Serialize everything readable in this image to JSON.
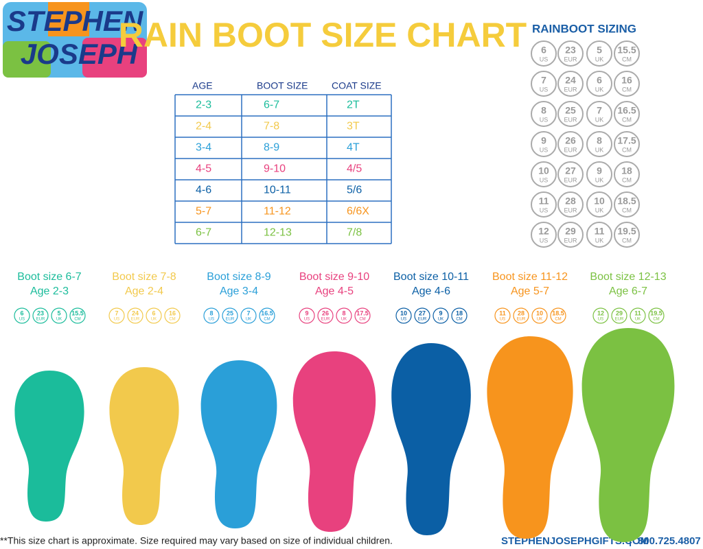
{
  "logo": {
    "line1": "STEPHEN",
    "line2": "JOSEPH"
  },
  "title": "RAIN BOOT SIZE CHART",
  "table": {
    "headers": [
      "AGE",
      "BOOT SIZE",
      "COAT SIZE"
    ],
    "rows": [
      [
        "2-3",
        "6-7",
        "2T"
      ],
      [
        "2-4",
        "7-8",
        "3T"
      ],
      [
        "3-4",
        "8-9",
        "4T"
      ],
      [
        "4-5",
        "9-10",
        "4/5"
      ],
      [
        "4-6",
        "10-11",
        "5/6"
      ],
      [
        "5-7",
        "11-12",
        "6/6X"
      ],
      [
        "6-7",
        "12-13",
        "7/8"
      ]
    ]
  },
  "units": [
    "US",
    "EUR",
    "UK",
    "CM"
  ],
  "sizing": {
    "title": "RAINBOOT SIZING",
    "rows": [
      [
        "6",
        "23",
        "5",
        "15.5"
      ],
      [
        "7",
        "24",
        "6",
        "16"
      ],
      [
        "8",
        "25",
        "7",
        "16.5"
      ],
      [
        "9",
        "26",
        "8",
        "17.5"
      ],
      [
        "10",
        "27",
        "9",
        "18"
      ],
      [
        "11",
        "28",
        "10",
        "18.5"
      ],
      [
        "12",
        "29",
        "11",
        "19.5"
      ]
    ]
  },
  "groups": [
    {
      "label": "Boot size 6-7",
      "age": "Age 2-3",
      "color": "#1bbc9b"
    },
    {
      "label": "Boot size 7-8",
      "age": "Age 2-4",
      "color": "#f2c94c"
    },
    {
      "label": "Boot size 8-9",
      "age": "Age 3-4",
      "color": "#2a9fd8"
    },
    {
      "label": "Boot size 9-10",
      "age": "Age 4-5",
      "color": "#e8417e"
    },
    {
      "label": "Boot size 10-11",
      "age": "Age 4-6",
      "color": "#0b5fa5"
    },
    {
      "label": "Boot size 11-12",
      "age": "Age 5-7",
      "color": "#f7941d"
    },
    {
      "label": "Boot size 12-13",
      "age": "Age 6-7",
      "color": "#7bc142"
    }
  ],
  "footer": {
    "note": "**This size chart is approximate. Size required may vary based on size of individual children.",
    "website": "STEPHENJOSEPHGIFTS.COM",
    "separator": "|",
    "phone": "800.725.4807"
  }
}
